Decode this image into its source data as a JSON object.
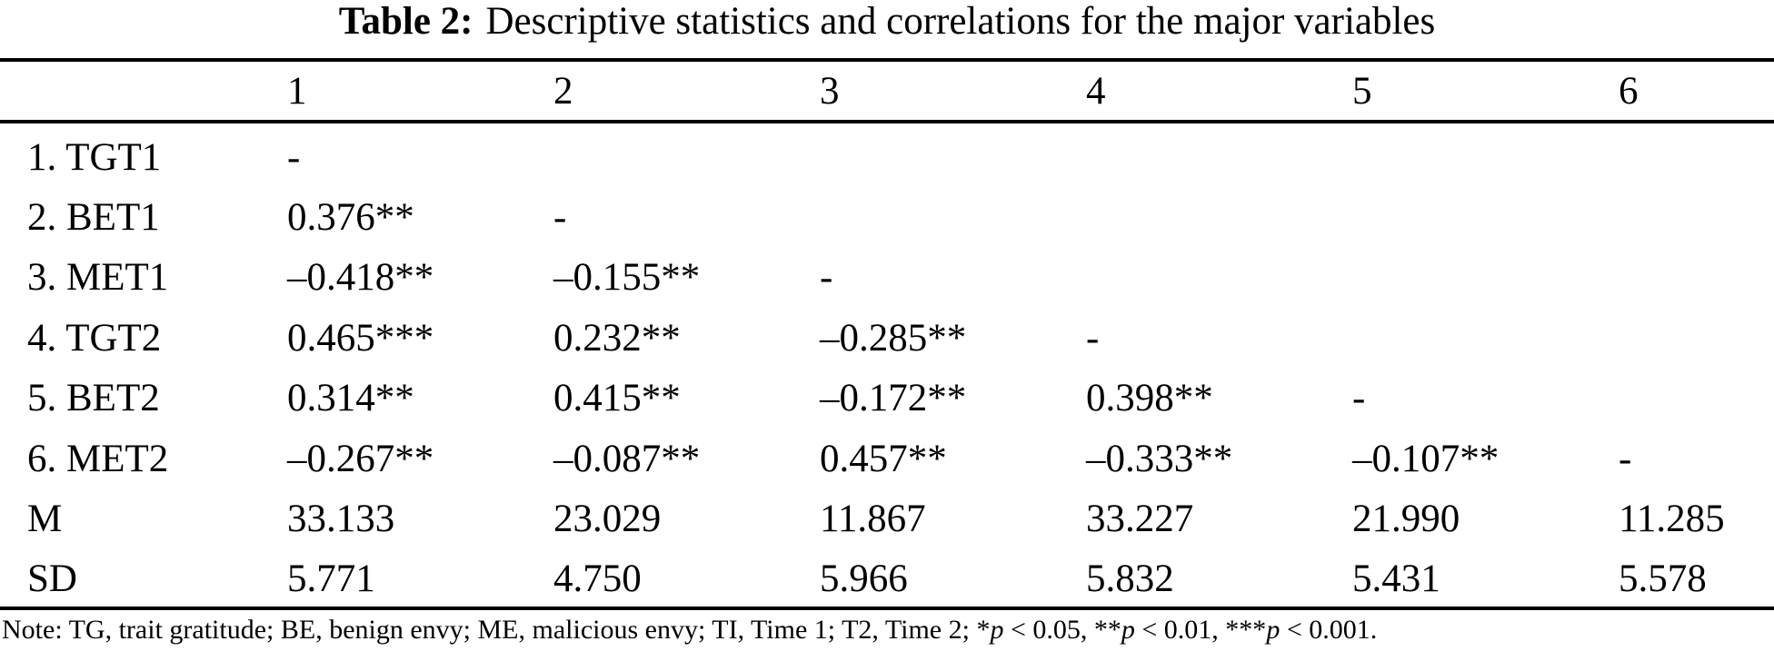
{
  "caption": {
    "label": "Table 2:",
    "text": "Descriptive statistics and correlations for the major variables"
  },
  "table": {
    "column_headers": [
      "1",
      "2",
      "3",
      "4",
      "5",
      "6"
    ],
    "rows": [
      {
        "label": "1. TGT1",
        "values": [
          "-",
          "",
          "",
          "",
          "",
          ""
        ]
      },
      {
        "label": "2. BET1",
        "values": [
          "0.376**",
          "-",
          "",
          "",
          "",
          ""
        ]
      },
      {
        "label": "3. MET1",
        "values": [
          "–0.418**",
          "–0.155**",
          "-",
          "",
          "",
          ""
        ]
      },
      {
        "label": "4. TGT2",
        "values": [
          "0.465***",
          "0.232**",
          "–0.285**",
          "-",
          "",
          ""
        ]
      },
      {
        "label": "5. BET2",
        "values": [
          "0.314**",
          "0.415**",
          "–0.172**",
          "0.398**",
          "-",
          ""
        ]
      },
      {
        "label": "6. MET2",
        "values": [
          "–0.267**",
          "–0.087**",
          "0.457**",
          "–0.333**",
          "–0.107**",
          "-"
        ]
      },
      {
        "label": "M",
        "values": [
          "33.133",
          "23.029",
          "11.867",
          "33.227",
          "21.990",
          "11.285"
        ]
      },
      {
        "label": "SD",
        "values": [
          "5.771",
          "4.750",
          "5.966",
          "5.832",
          "5.431",
          "5.578"
        ]
      }
    ]
  },
  "note": {
    "segments": [
      {
        "text": "Note: TG, trait gratitude; BE, benign envy; ME, malicious envy; TI, Time 1; T2, Time 2; *",
        "italic": false
      },
      {
        "text": "p",
        "italic": true
      },
      {
        "text": " < 0.05, **",
        "italic": false
      },
      {
        "text": "p",
        "italic": true
      },
      {
        "text": " < 0.01, ***",
        "italic": false
      },
      {
        "text": "p",
        "italic": true
      },
      {
        "text": " < 0.001.",
        "italic": false
      }
    ]
  }
}
